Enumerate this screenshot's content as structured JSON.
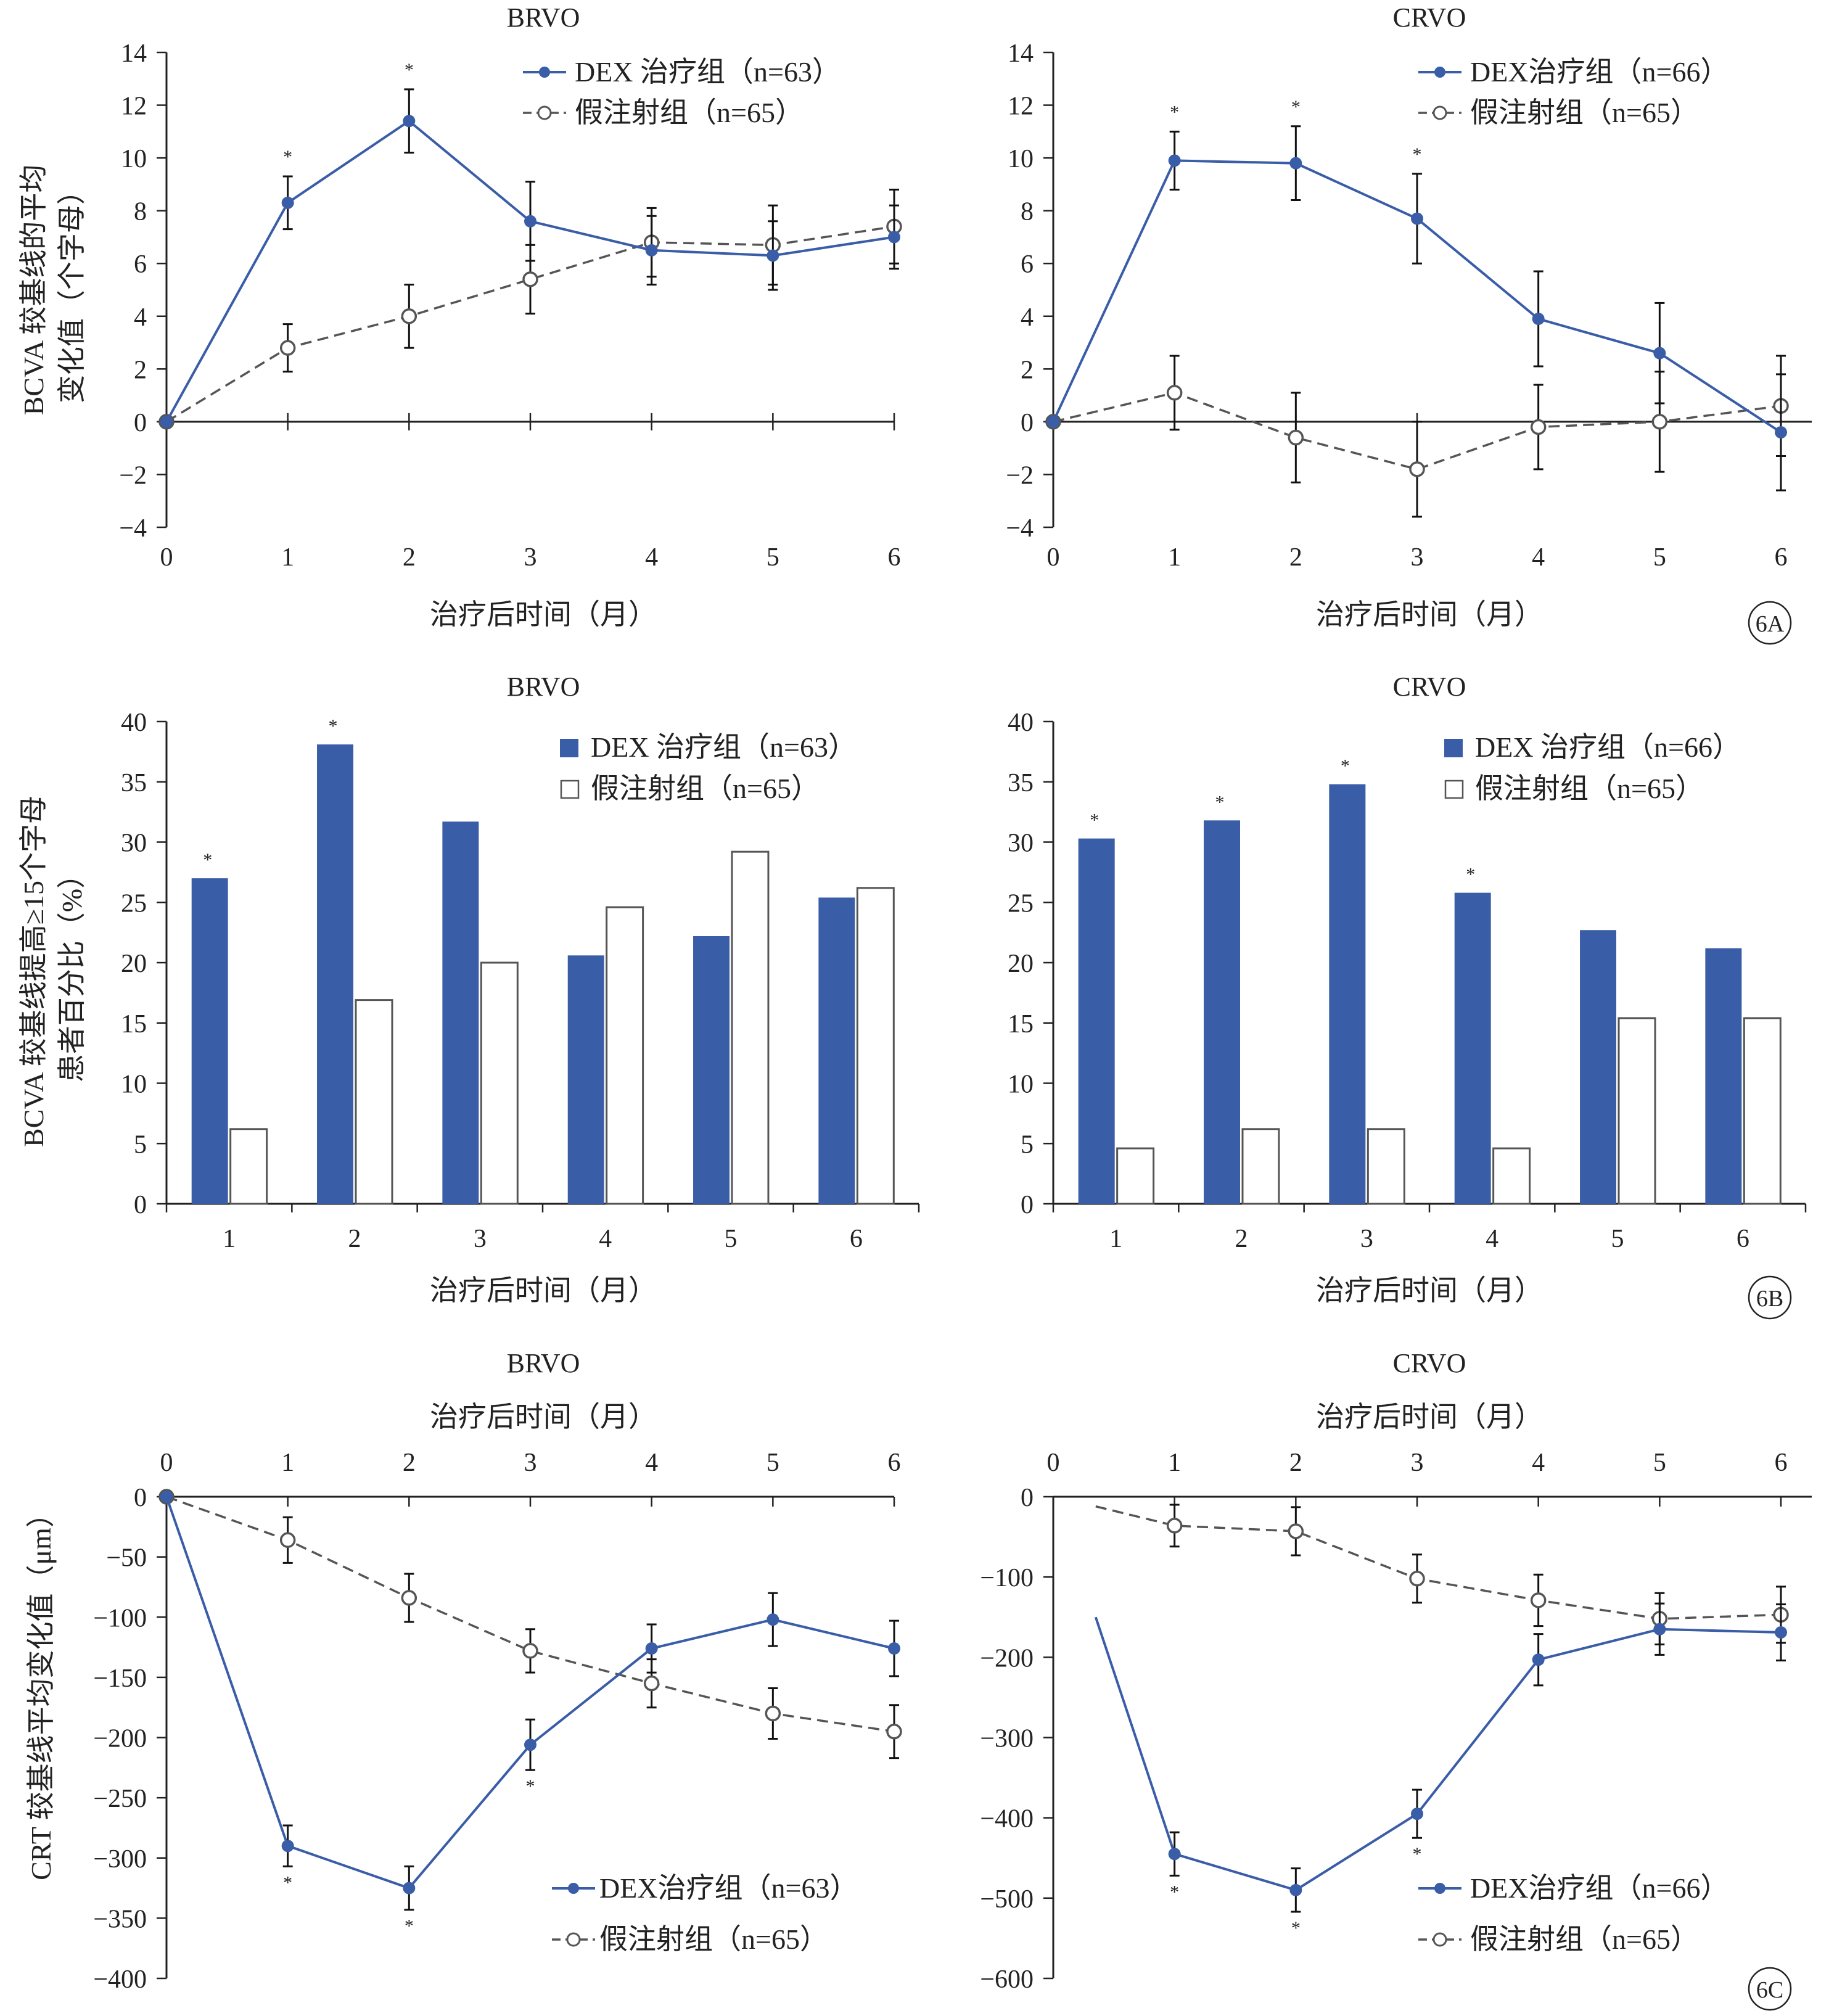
{
  "colors": {
    "dex": "#3a5da8",
    "sham": "#555555",
    "axis": "#222222"
  },
  "figure_labels": [
    "6A",
    "6B",
    "6C"
  ],
  "panel_titles": {
    "a_left": "BRVO",
    "a_right": "CRVO",
    "b_left": "BRVO",
    "b_right": "CRVO",
    "c_left": "BRVO",
    "c_right": "CRVO"
  },
  "y_axis_labels": {
    "a": [
      "BCVA 较基线的平均",
      "变化值（个字母）"
    ],
    "b": [
      "BCVA 较基线提高≥15个字母",
      "患者百分比（%）"
    ],
    "c": [
      "CRT 较基线平均变化值（μm）"
    ]
  },
  "x_axis_label": "治疗后时间（月）",
  "legends": {
    "a_left": [
      "DEX 治疗组（n=63）",
      "假注射组（n=65）"
    ],
    "a_right": [
      "DEX治疗组（n=66）",
      "假注射组（n=65）"
    ],
    "b_left": [
      "DEX 治疗组（n=63）",
      "假注射组（n=65）"
    ],
    "b_right": [
      "DEX 治疗组（n=66）",
      "假注射组（n=65）"
    ],
    "c_left": [
      "DEX治疗组（n=63）",
      "假注射组（n=65）"
    ],
    "c_right": [
      "DEX治疗组（n=66）",
      "假注射组（n=65）"
    ]
  },
  "significance_marker": "*",
  "chart_data": [
    {
      "id": "a_left",
      "type": "line",
      "title": "BRVO",
      "x": [
        0,
        1,
        2,
        3,
        4,
        5,
        6
      ],
      "xlim": [
        0,
        6
      ],
      "ylim": [
        -4,
        14
      ],
      "x_ticks": [
        0,
        1,
        2,
        3,
        4,
        5,
        6
      ],
      "y_ticks": [
        -4,
        -2,
        0,
        2,
        4,
        6,
        8,
        10,
        12,
        14
      ],
      "series": [
        {
          "name": "DEX 治疗组（n=63）",
          "values": [
            0,
            8.3,
            11.4,
            7.6,
            6.5,
            6.3,
            7.0
          ],
          "errors": [
            0,
            1.0,
            1.2,
            1.5,
            1.3,
            1.3,
            1.2
          ],
          "significant": [
            1,
            2
          ]
        },
        {
          "name": "假注射组（n=65）",
          "values": [
            0,
            2.8,
            4.0,
            5.4,
            6.8,
            6.7,
            7.4
          ],
          "errors": [
            0,
            0.9,
            1.2,
            1.3,
            1.3,
            1.5,
            1.4
          ],
          "significant": []
        }
      ]
    },
    {
      "id": "a_right",
      "type": "line",
      "title": "CRVO",
      "x": [
        0,
        1,
        2,
        3,
        4,
        5,
        6
      ],
      "xlim": [
        0,
        6
      ],
      "ylim": [
        -4,
        14
      ],
      "x_ticks": [
        0,
        1,
        2,
        3,
        4,
        5,
        6
      ],
      "y_ticks": [
        -4,
        -2,
        0,
        2,
        4,
        6,
        8,
        10,
        12,
        14
      ],
      "series": [
        {
          "name": "DEX治疗组（n=66）",
          "values": [
            0,
            9.9,
            9.8,
            7.7,
            3.9,
            2.6,
            -0.4
          ],
          "errors": [
            0,
            1.1,
            1.4,
            1.7,
            1.8,
            1.9,
            2.2
          ],
          "significant": [
            1,
            2,
            3
          ]
        },
        {
          "name": "假注射组（n=65）",
          "values": [
            0,
            1.1,
            -0.6,
            -1.8,
            -0.2,
            0,
            0.6
          ],
          "errors": [
            0,
            1.4,
            1.7,
            1.8,
            1.6,
            1.9,
            1.9
          ],
          "significant": []
        }
      ]
    },
    {
      "id": "b_left",
      "type": "bar",
      "title": "BRVO",
      "categories": [
        "1",
        "2",
        "3",
        "4",
        "5",
        "6"
      ],
      "ylim": [
        0,
        40
      ],
      "y_ticks": [
        0,
        5,
        10,
        15,
        20,
        25,
        30,
        35,
        40
      ],
      "series": [
        {
          "name": "DEX 治疗组（n=63）",
          "values": [
            27.0,
            38.1,
            31.7,
            20.6,
            22.2,
            25.4
          ],
          "significant": [
            0,
            1
          ]
        },
        {
          "name": "假注射组（n=65）",
          "values": [
            6.2,
            16.9,
            20.0,
            24.6,
            29.2,
            26.2
          ],
          "significant": []
        }
      ]
    },
    {
      "id": "b_right",
      "type": "bar",
      "title": "CRVO",
      "categories": [
        "1",
        "2",
        "3",
        "4",
        "5",
        "6"
      ],
      "ylim": [
        0,
        40
      ],
      "y_ticks": [
        0,
        5,
        10,
        15,
        20,
        25,
        30,
        35,
        40
      ],
      "series": [
        {
          "name": "DEX 治疗组（n=66）",
          "values": [
            30.3,
            31.8,
            34.8,
            25.8,
            22.7,
            21.2
          ],
          "significant": [
            0,
            1,
            2,
            3
          ]
        },
        {
          "name": "假注射组（n=65）",
          "values": [
            4.6,
            6.2,
            6.2,
            4.6,
            15.4,
            15.4
          ],
          "significant": []
        }
      ]
    },
    {
      "id": "c_left",
      "type": "line",
      "title": "BRVO",
      "x": [
        0,
        1,
        2,
        3,
        4,
        5,
        6
      ],
      "xlim": [
        0,
        6
      ],
      "ylim": [
        -400,
        0
      ],
      "x_ticks": [
        0,
        1,
        2,
        3,
        4,
        5,
        6
      ],
      "y_ticks": [
        -400,
        -350,
        -300,
        -250,
        -200,
        -150,
        -100,
        -50,
        0
      ],
      "series": [
        {
          "name": "DEX治疗组（n=63）",
          "values": [
            0,
            -290,
            -325,
            -206,
            -126,
            -102,
            -126
          ],
          "errors": [
            0,
            17,
            18,
            21,
            20,
            22,
            23
          ],
          "significant": [
            1,
            2,
            3
          ]
        },
        {
          "name": "假注射组（n=65）",
          "values": [
            0,
            -36,
            -84,
            -128,
            -155,
            -180,
            -195
          ],
          "errors": [
            0,
            19,
            20,
            18,
            20,
            21,
            22
          ],
          "significant": []
        }
      ]
    },
    {
      "id": "c_right",
      "type": "line",
      "title": "CRVO",
      "x": [
        0.35,
        1,
        2,
        3,
        4,
        5,
        6
      ],
      "xlim": [
        0,
        6
      ],
      "ylim": [
        -600,
        0
      ],
      "x_ticks": [
        0,
        1,
        2,
        3,
        4,
        5,
        6
      ],
      "y_ticks": [
        -600,
        -500,
        -400,
        -300,
        -200,
        -100,
        0
      ],
      "series": [
        {
          "name": "DEX治疗组（n=66）",
          "values": [
            -150,
            -445,
            -490,
            -395,
            -203,
            -165,
            -169
          ],
          "errors": [
            0,
            27,
            27,
            30,
            32,
            32,
            35
          ],
          "significant": [
            1,
            2,
            3
          ],
          "no_marker_first": true
        },
        {
          "name": "假注射组（n=65）",
          "values": [
            -12,
            -36,
            -43,
            -102,
            -129,
            -152,
            -147
          ],
          "errors": [
            0,
            26,
            30,
            30,
            32,
            32,
            35
          ],
          "significant": [],
          "no_marker_first": true
        }
      ]
    }
  ]
}
